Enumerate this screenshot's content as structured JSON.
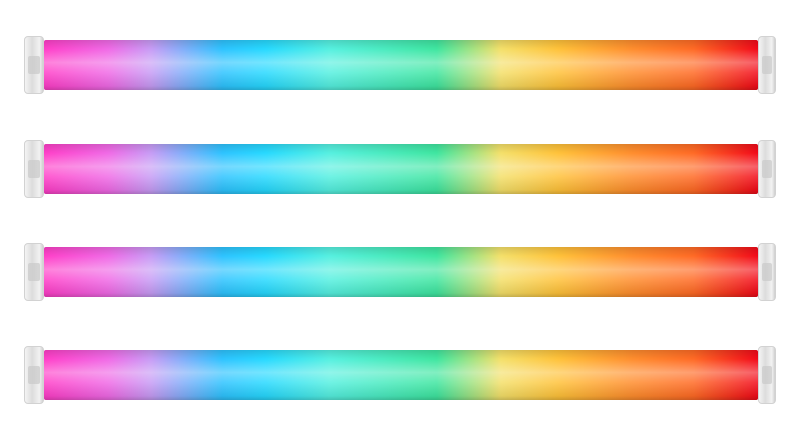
{
  "image": {
    "subject": "rgb-led-tube-lights",
    "tube_count": 4,
    "cap_color": "#e6e6e6",
    "background": "#ffffff",
    "gradient_colors": [
      "#ff3fc8",
      "#f06ae6",
      "#c79cf5",
      "#2ec3ff",
      "#27d9ff",
      "#56f0e0",
      "#3fe6a0",
      "#f4e06a",
      "#ffc23a",
      "#ff8f2e",
      "#ff6a25",
      "#f20a1a"
    ]
  }
}
